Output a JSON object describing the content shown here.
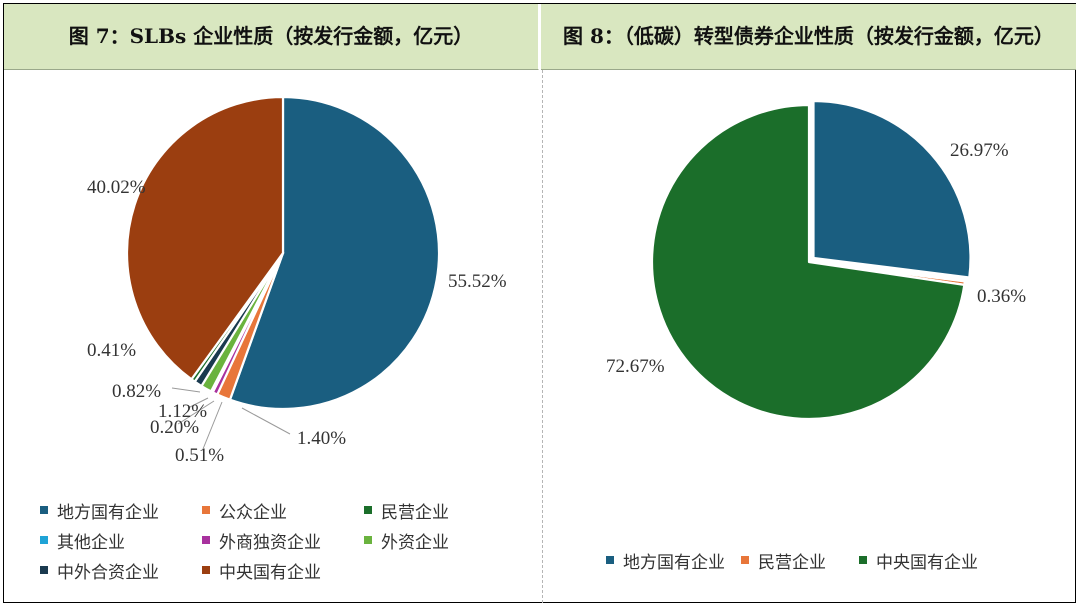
{
  "headers": {
    "left": "图 7：SLBs 企业性质（按发行金额，亿元）",
    "right": "图 8：（低碳）转型债券企业性质（按发行金额，亿元）"
  },
  "chart_data": [
    {
      "type": "pie",
      "title": "图 7：SLBs 企业性质（按发行金额，亿元）",
      "legend_position": "bottom",
      "slices": [
        {
          "name": "地方国有企业",
          "value": 55.52,
          "label": "55.52%",
          "color": "#1a5e80"
        },
        {
          "name": "公众企业",
          "value": 1.4,
          "label": "1.40%",
          "color": "#e8763a"
        },
        {
          "name": "外商独资企业",
          "value": 0.51,
          "label": "0.51%",
          "color": "#a8329e"
        },
        {
          "name": "其他企业",
          "value": 0.2,
          "label": "0.20%",
          "color": "#1fa3d6"
        },
        {
          "name": "外资企业",
          "value": 1.12,
          "label": "1.12%",
          "color": "#6ab33e"
        },
        {
          "name": "中外合资企业",
          "value": 0.82,
          "label": "0.82%",
          "color": "#1a3a4f"
        },
        {
          "name": "民营企业",
          "value": 0.41,
          "label": "0.41%",
          "color": "#1b6e2a"
        },
        {
          "name": "中央国有企业",
          "value": 40.02,
          "label": "40.02%",
          "color": "#9b3e10"
        }
      ],
      "legend": [
        {
          "name": "地方国有企业",
          "color": "#1a5e80"
        },
        {
          "name": "公众企业",
          "color": "#e8763a"
        },
        {
          "name": "民营企业",
          "color": "#1b6e2a"
        },
        {
          "name": "其他企业",
          "color": "#1fa3d6"
        },
        {
          "name": "外商独资企业",
          "color": "#a8329e"
        },
        {
          "name": "外资企业",
          "color": "#6ab33e"
        },
        {
          "name": "中外合资企业",
          "color": "#1a3a4f"
        },
        {
          "name": "中央国有企业",
          "color": "#9b3e10"
        }
      ]
    },
    {
      "type": "pie",
      "title": "图 8：（低碳）转型债券企业性质（按发行金额，亿元）",
      "legend_position": "bottom",
      "slices": [
        {
          "name": "地方国有企业",
          "value": 26.97,
          "label": "26.97%",
          "color": "#1a5e80"
        },
        {
          "name": "民营企业",
          "value": 0.36,
          "label": "0.36%",
          "color": "#e8763a"
        },
        {
          "name": "中央国有企业",
          "value": 72.67,
          "label": "72.67%",
          "color": "#1b6e2a"
        }
      ],
      "legend": [
        {
          "name": "地方国有企业",
          "color": "#1a5e80"
        },
        {
          "name": "民营企业",
          "color": "#e8763a"
        },
        {
          "name": "中央国有企业",
          "color": "#1b6e2a"
        }
      ]
    }
  ]
}
